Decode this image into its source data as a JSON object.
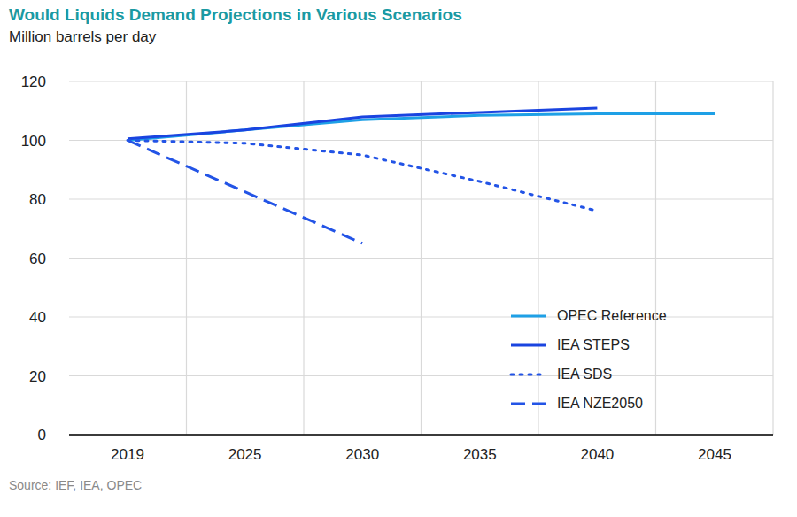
{
  "chart_data": {
    "type": "line",
    "title": "Would Liquids Demand Projections in Various Scenarios",
    "subtitle": "Million barrels per day",
    "source": "Source: IEF, IEA, OPEC",
    "categories": [
      "2019",
      "2025",
      "2030",
      "2035",
      "2040",
      "2045"
    ],
    "series": [
      {
        "name": "OPEC Reference",
        "color": "#1ea0e6",
        "line_style": "solid",
        "values": [
          100,
          103.5,
          107,
          108.5,
          109,
          109
        ]
      },
      {
        "name": "IEA STEPS",
        "color": "#1a44e0",
        "line_style": "solid",
        "values": [
          100.5,
          103.5,
          108,
          109.5,
          111,
          null
        ]
      },
      {
        "name": "IEA SDS",
        "color": "#2354e6",
        "line_style": "dotted",
        "values": [
          100,
          99,
          95,
          86,
          76,
          null
        ]
      },
      {
        "name": "IEA NZE2050",
        "color": "#2354e6",
        "line_style": "dashed",
        "values": [
          100,
          82.5,
          65,
          null,
          null,
          null
        ]
      }
    ],
    "ylim": [
      0,
      120
    ],
    "yticks": [
      0,
      20,
      40,
      60,
      80,
      100,
      120
    ],
    "grid": true,
    "legend": "lower right"
  }
}
